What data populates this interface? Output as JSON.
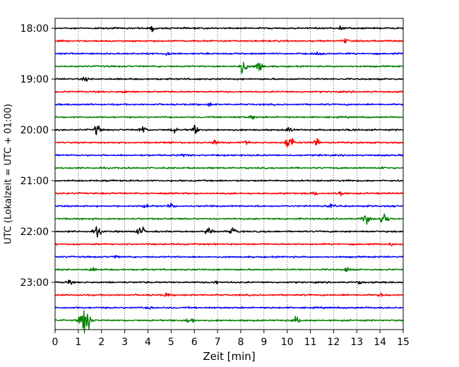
{
  "chart_data": {
    "type": "line",
    "title": "",
    "xlabel": "Zeit  [min]",
    "ylabel": "UTC (Lokalzeit = UTC + 01:00)",
    "xlim": [
      0,
      15
    ],
    "x_ticks": [
      "0",
      "1",
      "2",
      "3",
      "4",
      "5",
      "6",
      "7",
      "8",
      "9",
      "10",
      "11",
      "12",
      "13",
      "14",
      "15"
    ],
    "y_ticks": [
      "18:00",
      "19:00",
      "20:00",
      "21:00",
      "22:00",
      "23:00"
    ],
    "grid": {
      "vertical": true,
      "style": "dotted"
    },
    "series_colors": [
      "#000000",
      "#ff0000",
      "#0000ff",
      "#008000"
    ],
    "rows_per_hour": 4,
    "row_start_minutes": [
      0,
      15,
      30,
      45,
      60,
      75,
      90,
      105,
      120,
      135,
      150,
      165,
      180,
      195,
      210,
      225,
      240,
      255,
      270,
      285,
      300,
      315,
      330,
      345
    ],
    "bursts": [
      [
        [
          4.2,
          0.6
        ],
        [
          12.3,
          0.5
        ]
      ],
      [
        [
          12.5,
          0.5
        ]
      ],
      [
        [
          4.9,
          0.5
        ],
        [
          11.4,
          0.5
        ]
      ],
      [
        [
          8.1,
          1.8
        ],
        [
          8.8,
          1.5
        ]
      ],
      [
        [
          1.3,
          0.4
        ]
      ],
      [
        [
          3.0,
          0.3
        ]
      ],
      [
        [
          6.7,
          0.4
        ]
      ],
      [
        [
          8.5,
          0.5
        ]
      ],
      [
        [
          1.8,
          1.2
        ],
        [
          3.8,
          1.0
        ],
        [
          5.1,
          0.7
        ],
        [
          6.0,
          1.0
        ],
        [
          10.1,
          0.6
        ],
        [
          12.7,
          0.5
        ]
      ],
      [
        [
          6.9,
          0.5
        ],
        [
          8.2,
          0.6
        ],
        [
          10.1,
          1.8
        ],
        [
          11.3,
          1.0
        ]
      ],
      [
        [
          5.5,
          0.4
        ]
      ],
      [
        [
          14.1,
          0.3
        ]
      ],
      [
        [
          2.3,
          0.3
        ],
        [
          12.6,
          0.3
        ]
      ],
      [
        [
          11.2,
          0.4
        ],
        [
          12.3,
          0.6
        ]
      ],
      [
        [
          3.9,
          0.5
        ],
        [
          5.0,
          0.5
        ],
        [
          11.9,
          0.4
        ]
      ],
      [
        [
          13.4,
          1.2
        ],
        [
          14.2,
          1.6
        ]
      ],
      [
        [
          1.8,
          1.4
        ],
        [
          3.7,
          1.3
        ],
        [
          6.6,
          1.1
        ],
        [
          7.7,
          1.0
        ]
      ],
      [
        [
          14.5,
          0.3
        ]
      ],
      [
        [
          2.6,
          0.3
        ]
      ],
      [
        [
          1.6,
          0.4
        ],
        [
          12.6,
          0.6
        ]
      ],
      [
        [
          0.6,
          0.5
        ],
        [
          6.9,
          0.4
        ],
        [
          13.1,
          0.4
        ]
      ],
      [
        [
          4.8,
          0.4
        ],
        [
          14.1,
          0.5
        ]
      ],
      [
        [
          4.1,
          0.3
        ]
      ],
      [
        [
          1.3,
          3.5
        ],
        [
          5.8,
          1.1
        ],
        [
          10.4,
          0.8
        ]
      ]
    ]
  }
}
